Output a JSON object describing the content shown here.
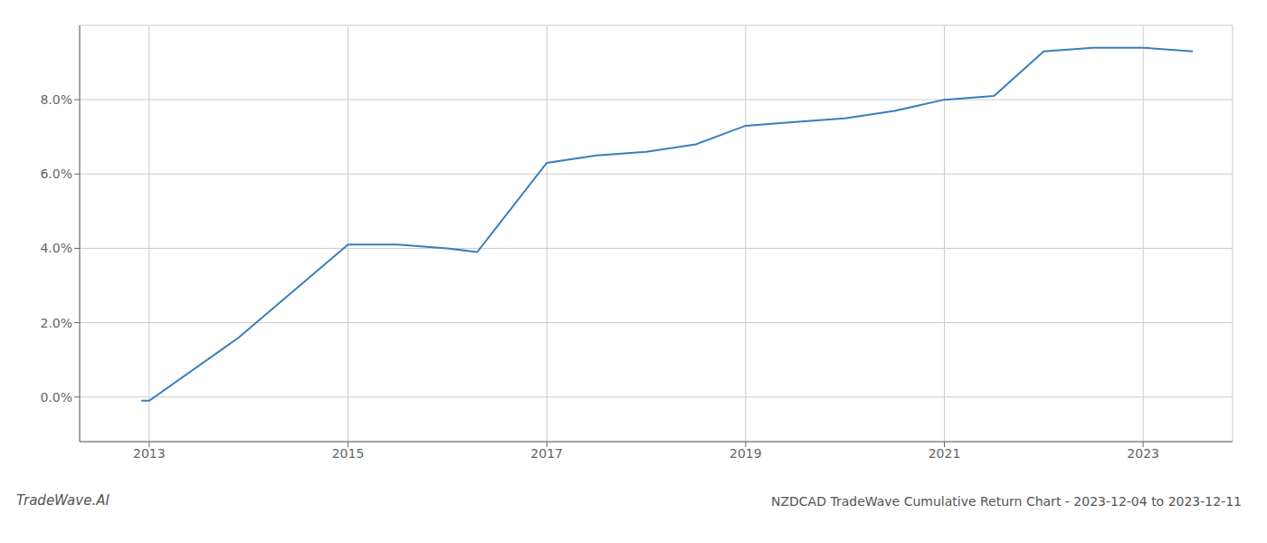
{
  "chart_data": {
    "type": "line",
    "title": "NZDCAD TradeWave Cumulative Return Chart - 2023-12-04 to 2023-12-11",
    "annotations": [
      "TradeWave.AI"
    ],
    "x": [
      2012.92,
      2013.0,
      2013.9,
      2015.0,
      2015.5,
      2016.0,
      2016.3,
      2017.0,
      2017.5,
      2018.0,
      2018.5,
      2019.0,
      2019.5,
      2020.0,
      2020.5,
      2021.0,
      2021.5,
      2022.0,
      2022.5,
      2023.0,
      2023.5
    ],
    "values": [
      -0.001,
      -0.001,
      0.016,
      0.041,
      0.041,
      0.04,
      0.039,
      0.063,
      0.065,
      0.066,
      0.068,
      0.073,
      0.074,
      0.075,
      0.077,
      0.08,
      0.081,
      0.093,
      0.094,
      0.094,
      0.093
    ],
    "color": "#3a7ebf",
    "xlim": [
      2012.3,
      2023.9
    ],
    "ylim": [
      -0.012,
      0.1
    ],
    "xticks": [
      2013,
      2015,
      2017,
      2019,
      2021,
      2023
    ],
    "yticks": [
      {
        "value": 0.0,
        "label": "0.0%"
      },
      {
        "value": 0.02,
        "label": "2.0%"
      },
      {
        "value": 0.04,
        "label": "4.0%"
      },
      {
        "value": 0.06,
        "label": "6.0%"
      },
      {
        "value": 0.08,
        "label": "8.0%"
      }
    ],
    "grid": true
  }
}
